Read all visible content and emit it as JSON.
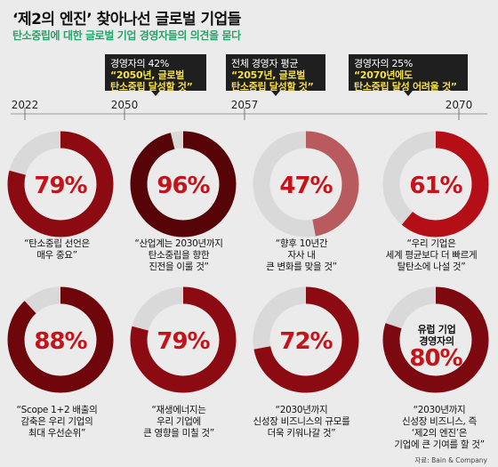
{
  "title": "‘제2의 엔진’ 찾아나선 글로벌 기업들",
  "subtitle": "탄소중립에 대한 글로벌 기업 경영자들의 의견을 묻다",
  "callouts": [
    {
      "label": "경영자의 42%",
      "highlight": [
        "“2050년, 글로벌",
        "탄소중립 달성할 것”"
      ]
    },
    {
      "label": "전체 경영자 평균",
      "highlight": [
        "“2057년, 글로벌",
        "탄소중립 달성할 것”"
      ]
    },
    {
      "label": "경영자의 25%",
      "highlight": [
        "“2070년에도",
        "탄소중립 달성 어려울 것”"
      ]
    }
  ],
  "timeline": {
    "ticks": [
      "2022",
      "2050",
      "2057",
      "2070"
    ]
  },
  "chart_data": {
    "type": "donut",
    "title": "‘제2의 엔진’ 찾아나선 글로벌 기업들",
    "subtitle": "탄소중립에 대한 글로벌 기업 경영자들의 의견을 묻다",
    "unit": "%",
    "items": [
      {
        "value": 79,
        "label": "79%",
        "caption": [
          "“탄소중립 선언은",
          "매우 중요”"
        ],
        "color": "#8c0a12"
      },
      {
        "value": 96,
        "label": "96%",
        "caption": [
          "“산업계는 2030년까지",
          "탄소중립을 향한",
          "진전을 이룰 것”"
        ],
        "color": "#560408"
      },
      {
        "value": 47,
        "label": "47%",
        "caption": [
          "“향후 10년간",
          "자사 내",
          "큰 변화를 맞을 것”"
        ],
        "color": "#b85a5e"
      },
      {
        "value": 61,
        "label": "61%",
        "caption": [
          "“우리 기업은",
          "세계 평균보다 더 빠르게",
          "탈탄소에 나설 것”"
        ],
        "color": "#b40f17"
      },
      {
        "value": 88,
        "label": "88%",
        "caption": [
          "“Scope 1+2 배출의",
          "감축은 우리 기업의",
          "최대 우선순위”"
        ],
        "color": "#6e060c"
      },
      {
        "value": 79,
        "label": "79%",
        "caption": [
          "“재생에너지는",
          "우리 기업에",
          "큰 영향을 미칠 것”"
        ],
        "color": "#8c0a12"
      },
      {
        "value": 72,
        "label": "72%",
        "caption": [
          "“2030년까지",
          "신성장 비즈니스의 규모를",
          "더욱 키워나갈 것”"
        ],
        "color": "#8c0a12"
      },
      {
        "value": 80,
        "label": "80%",
        "inner_label": [
          "유럽 기업",
          "경영자의"
        ],
        "caption": [
          "“2030년까지",
          "신성장 비즈니스, 즉",
          "‘제2의 엔진’은",
          "기업에 큰 기여를 할 것”"
        ],
        "color": "#7c0810"
      }
    ],
    "track_color": "#d9d9d9"
  },
  "source": "자료: Bain & Company"
}
